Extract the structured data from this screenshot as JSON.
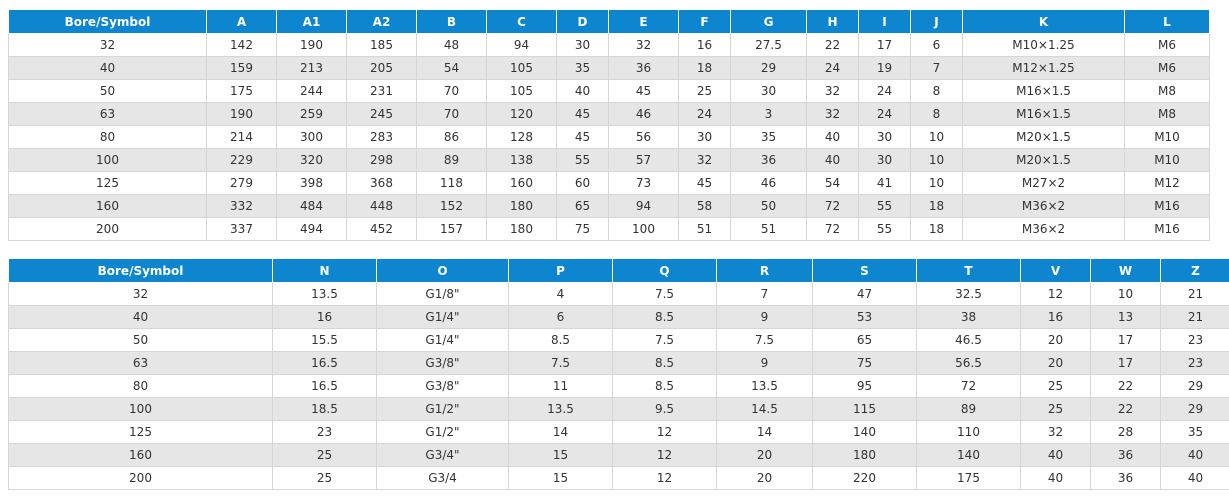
{
  "table1": {
    "headers": [
      "Bore/Symbol",
      "A",
      "A1",
      "A2",
      "B",
      "C",
      "D",
      "E",
      "F",
      "G",
      "H",
      "I",
      "J",
      "K",
      "L"
    ],
    "rows": [
      [
        "32",
        "142",
        "190",
        "185",
        "48",
        "94",
        "30",
        "32",
        "16",
        "27.5",
        "22",
        "17",
        "6",
        "M10×1.25",
        "M6"
      ],
      [
        "40",
        "159",
        "213",
        "205",
        "54",
        "105",
        "35",
        "36",
        "18",
        "29",
        "24",
        "19",
        "7",
        "M12×1.25",
        "M6"
      ],
      [
        "50",
        "175",
        "244",
        "231",
        "70",
        "105",
        "40",
        "45",
        "25",
        "30",
        "32",
        "24",
        "8",
        "M16×1.5",
        "M8"
      ],
      [
        "63",
        "190",
        "259",
        "245",
        "70",
        "120",
        "45",
        "46",
        "24",
        "3",
        "32",
        "24",
        "8",
        "M16×1.5",
        "M8"
      ],
      [
        "80",
        "214",
        "300",
        "283",
        "86",
        "128",
        "45",
        "56",
        "30",
        "35",
        "40",
        "30",
        "10",
        "M20×1.5",
        "M10"
      ],
      [
        "100",
        "229",
        "320",
        "298",
        "89",
        "138",
        "55",
        "57",
        "32",
        "36",
        "40",
        "30",
        "10",
        "M20×1.5",
        "M10"
      ],
      [
        "125",
        "279",
        "398",
        "368",
        "118",
        "160",
        "60",
        "73",
        "45",
        "46",
        "54",
        "41",
        "10",
        "M27×2",
        "M12"
      ],
      [
        "160",
        "332",
        "484",
        "448",
        "152",
        "180",
        "65",
        "94",
        "58",
        "50",
        "72",
        "55",
        "18",
        "M36×2",
        "M16"
      ],
      [
        "200",
        "337",
        "494",
        "452",
        "157",
        "180",
        "75",
        "100",
        "51",
        "51",
        "72",
        "55",
        "18",
        "M36×2",
        "M16"
      ]
    ]
  },
  "table2": {
    "headers": [
      "Bore/Symbol",
      "N",
      "O",
      "P",
      "Q",
      "R",
      "S",
      "T",
      "V",
      "W",
      "Z"
    ],
    "rows": [
      [
        "32",
        "13.5",
        "G1/8\"",
        "4",
        "7.5",
        "7",
        "47",
        "32.5",
        "12",
        "10",
        "21"
      ],
      [
        "40",
        "16",
        "G1/4\"",
        "6",
        "8.5",
        "9",
        "53",
        "38",
        "16",
        "13",
        "21"
      ],
      [
        "50",
        "15.5",
        "G1/4\"",
        "8.5",
        "7.5",
        "7.5",
        "65",
        "46.5",
        "20",
        "17",
        "23"
      ],
      [
        "63",
        "16.5",
        "G3/8\"",
        "7.5",
        "8.5",
        "9",
        "75",
        "56.5",
        "20",
        "17",
        "23"
      ],
      [
        "80",
        "16.5",
        "G3/8\"",
        "11",
        "8.5",
        "13.5",
        "95",
        "72",
        "25",
        "22",
        "29"
      ],
      [
        "100",
        "18.5",
        "G1/2\"",
        "13.5",
        "9.5",
        "14.5",
        "115",
        "89",
        "25",
        "22",
        "29"
      ],
      [
        "125",
        "23",
        "G1/2\"",
        "14",
        "12",
        "14",
        "140",
        "110",
        "32",
        "28",
        "35"
      ],
      [
        "160",
        "25",
        "G3/4\"",
        "15",
        "12",
        "20",
        "180",
        "140",
        "40",
        "36",
        "40"
      ],
      [
        "200",
        "25",
        "G3/4",
        "15",
        "12",
        "20",
        "220",
        "175",
        "40",
        "36",
        "40"
      ]
    ]
  },
  "colors": {
    "header_bg": "#0d86cf",
    "header_text": "#ffffff",
    "row_alt_bg": "#e6e6e6",
    "row_bg": "#ffffff"
  }
}
